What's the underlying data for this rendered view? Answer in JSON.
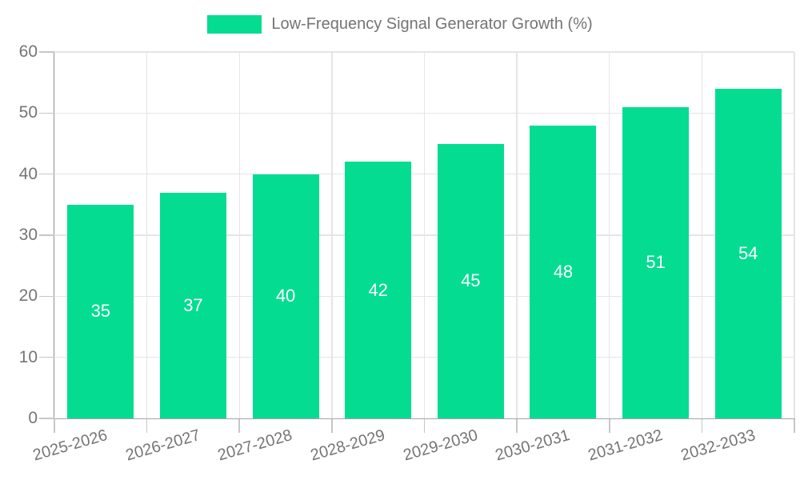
{
  "legend": {
    "label": "Low-Frequency Signal Generator Growth (%)"
  },
  "chart_data": {
    "type": "bar",
    "title": "Low-Frequency Signal Generator Growth (%)",
    "categories": [
      "2025-2026",
      "2026-2027",
      "2027-2028",
      "2028-2029",
      "2029-2030",
      "2030-2031",
      "2031-2032",
      "2032-2033"
    ],
    "values": [
      35,
      37,
      40,
      42,
      45,
      48,
      51,
      54
    ],
    "value_labels": [
      "35",
      "37",
      "40",
      "42",
      "45",
      "48",
      "51",
      "54"
    ],
    "xlabel": "",
    "ylabel": "",
    "ylim": [
      0,
      60
    ],
    "yticks": [
      0,
      10,
      20,
      30,
      40,
      50,
      60
    ],
    "ytick_labels": [
      "0",
      "10",
      "20",
      "30",
      "40",
      "50",
      "60"
    ],
    "grid": true,
    "legend_position": "top-center",
    "colors": {
      "bar": "#04dc92",
      "value_label": "#ffffff",
      "grid": "#e5e5e9",
      "axis": "#9a9a9a",
      "tick": "#c6c6ca",
      "label_text": "#757575",
      "title_text": "#747474",
      "background": "#ffffff"
    }
  }
}
